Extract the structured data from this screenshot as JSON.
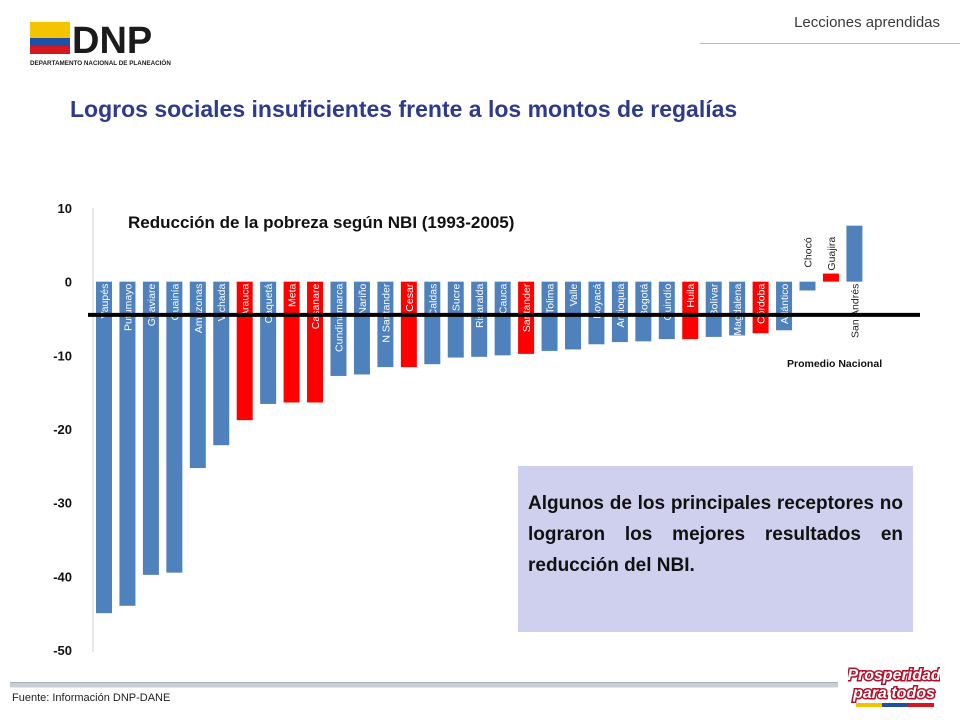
{
  "header": {
    "section_label": "Lecciones aprendidas"
  },
  "logo": {
    "acronym": "DNP",
    "full_name": "DEPARTAMENTO NACIONAL DE PLANEACIÓN"
  },
  "page": {
    "title": "Logros sociales insuficientes frente a los montos de regalías"
  },
  "callout": {
    "text": "Algunos de los principales receptores no lograron los mejores resultados en reducción del NBI."
  },
  "footer": {
    "source": "Fuente: Información DNP-DANE"
  },
  "brand": {
    "line1": "Prosperidad",
    "line2": "para todos"
  },
  "colors": {
    "title": "#2e3a8c",
    "bar_default": "#4f81bd",
    "bar_highlight": "#ff0000",
    "average_line": "#000000",
    "callout_bg": "#cfd0ee"
  },
  "chart_data": {
    "type": "bar",
    "title": "Reducción de la pobreza según NBI (1993-2005)",
    "ylim": [
      -50,
      10
    ],
    "yticks": [
      10,
      0,
      -10,
      -20,
      -30,
      -40,
      -50
    ],
    "reference_line": {
      "label": "Promedio Nacional",
      "value": -4.5
    },
    "grid": false,
    "categories": [
      "Vaupés",
      "Putumayo",
      "Guaviare",
      "Guainía",
      "Amazonas",
      "Vichada",
      "Arauca",
      "Caquetá",
      "Meta",
      "Casanare",
      "Cundinamarca",
      "Nariño",
      "N Santander",
      "Cesar",
      "Caldas",
      "Sucre",
      "Risaralda",
      "Cauca",
      "Santander",
      "Tolima",
      "Valle",
      "Boyacá",
      "Antioquia",
      "Bogotá",
      "Quindío",
      "Huila",
      "Bolívar",
      "Magdalena",
      "Córdoba",
      "Atlántico",
      "Chocó",
      "Guajira",
      "San Andrés"
    ],
    "values": [
      -45.0,
      -44.0,
      -39.8,
      -39.5,
      -25.3,
      -22.2,
      -18.8,
      -16.6,
      -16.4,
      -16.4,
      -12.8,
      -12.6,
      -11.6,
      -11.6,
      -11.2,
      -10.3,
      -10.2,
      -10.0,
      -9.8,
      -9.4,
      -9.2,
      -8.5,
      -8.2,
      -8.1,
      -7.8,
      -7.8,
      -7.5,
      -7.3,
      -7.0,
      -6.6,
      -1.2,
      1.1,
      7.6
    ],
    "highlighted": [
      "Arauca",
      "Meta",
      "Casanare",
      "Cesar",
      "Santander",
      "Huila",
      "Córdoba",
      "Guajira"
    ]
  }
}
